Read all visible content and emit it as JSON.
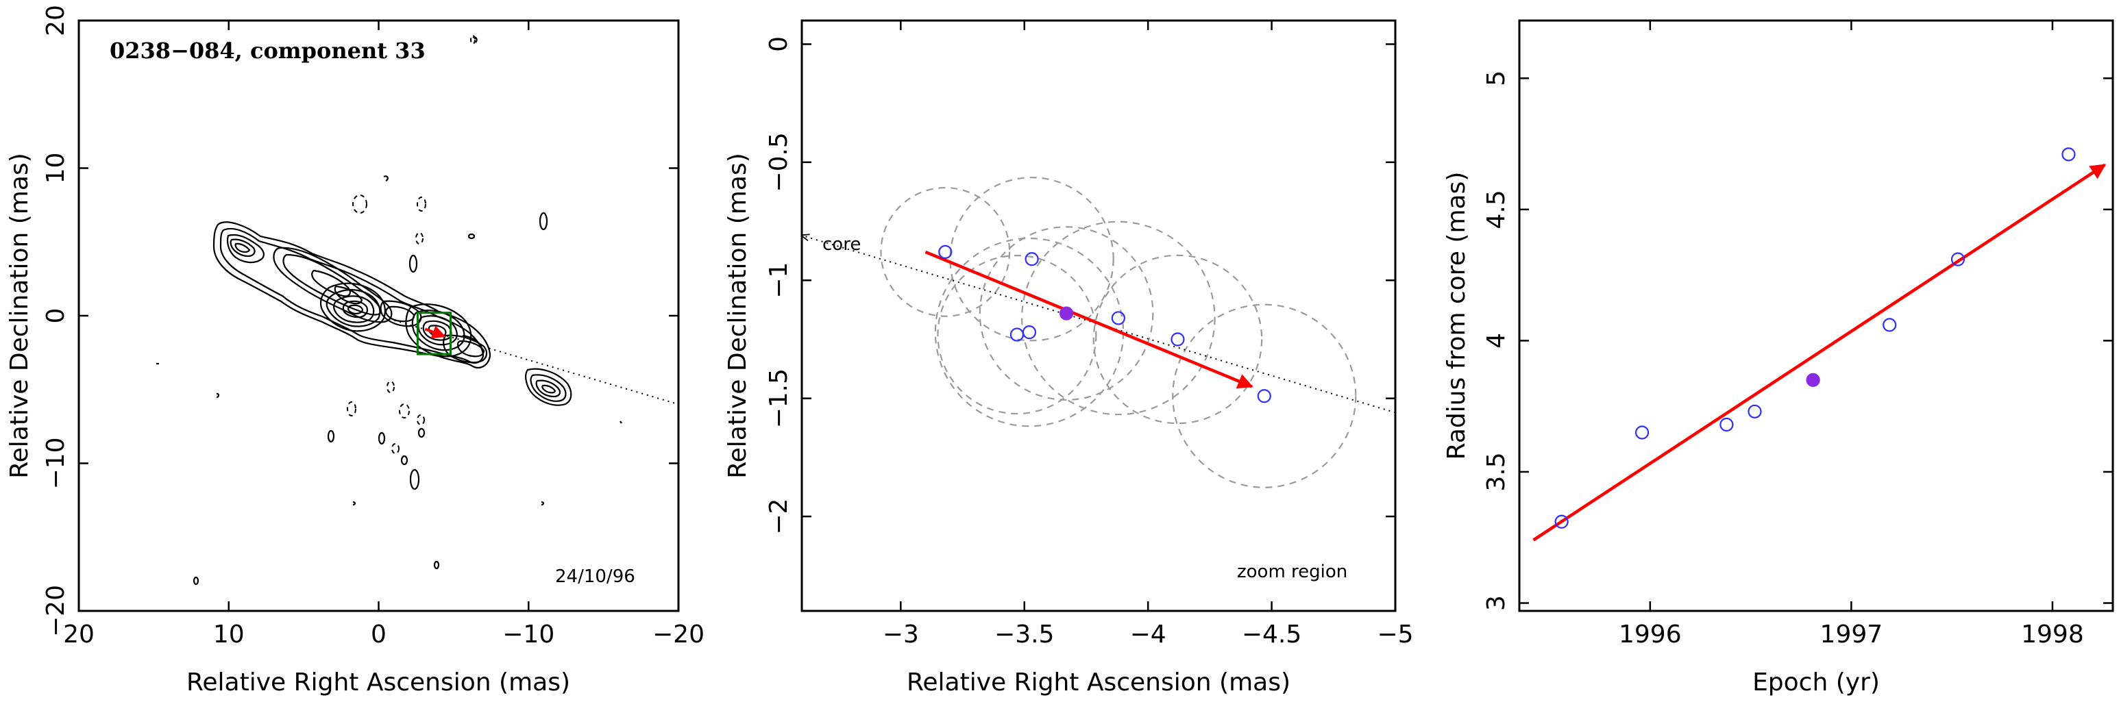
{
  "figure": {
    "colors": {
      "open_marker": "#2f2fff",
      "filled_marker": "#8a2be2",
      "arrow": "#ff0000",
      "box": "#007700"
    }
  },
  "chart_data": [
    {
      "type": "contour",
      "title": "0238−084, component 33",
      "date_label": "24/10/96",
      "xlabel": "Relative Right Ascension (mas)",
      "ylabel": "Relative Declination (mas)",
      "xlim": [
        20,
        -20
      ],
      "ylim": [
        -20,
        20
      ],
      "xticks": [
        20,
        10,
        0,
        -10,
        -20
      ],
      "xtick_labels": [
        "20",
        "10",
        "0",
        "−10",
        "−20"
      ],
      "yticks": [
        -20,
        -10,
        0,
        10,
        20
      ],
      "ytick_labels": [
        "−20",
        "−10",
        "0",
        "10",
        "20"
      ],
      "jet_axis": {
        "from": [
          0,
          0
        ],
        "to": [
          -20,
          -6.0
        ],
        "style": "dotted"
      },
      "marker_box": {
        "x_range": [
          -2.6,
          -4.8
        ],
        "y_range": [
          0.2,
          -2.6
        ]
      },
      "component_arrow": {
        "from": [
          -3.1,
          -0.9
        ],
        "to": [
          -4.4,
          -1.4
        ]
      }
    },
    {
      "type": "scatter",
      "annotation": "zoom region",
      "core_label": "core",
      "xlabel": "Relative Right Ascension (mas)",
      "ylabel": "Relative Declination (mas)",
      "xlim": [
        -2.6,
        -5.0
      ],
      "ylim": [
        -2.4,
        0.1
      ],
      "xticks": [
        -3,
        -3.5,
        -4,
        -4.5,
        -5
      ],
      "xtick_labels": [
        "−3",
        "−3.5",
        "−4",
        "−4.5",
        "−5"
      ],
      "yticks": [
        0,
        -0.5,
        -1,
        -1.5,
        -2
      ],
      "ytick_labels": [
        "0",
        "−0.5",
        "−1",
        "−1.5",
        "−2"
      ],
      "points": [
        {
          "x": -3.18,
          "y": -0.88,
          "filled": false,
          "r": 0.26
        },
        {
          "x": -3.53,
          "y": -0.91,
          "filled": false,
          "r": 0.33
        },
        {
          "x": -3.47,
          "y": -1.23,
          "filled": false,
          "r": 0.32
        },
        {
          "x": -3.52,
          "y": -1.22,
          "filled": false,
          "r": 0.38
        },
        {
          "x": -3.67,
          "y": -1.14,
          "filled": true,
          "r": 0.35
        },
        {
          "x": -3.88,
          "y": -1.16,
          "filled": false,
          "r": 0.39
        },
        {
          "x": -4.12,
          "y": -1.25,
          "filled": false,
          "r": 0.34
        },
        {
          "x": -4.47,
          "y": -1.49,
          "filled": false,
          "r": 0.37
        }
      ],
      "core_direction": {
        "from": [
          -5.0,
          -1.56
        ],
        "to": [
          -2.6,
          -0.81
        ]
      },
      "fit_arrow": {
        "from": [
          -3.1,
          -0.88
        ],
        "to": [
          -4.42,
          -1.45
        ]
      }
    },
    {
      "type": "scatter",
      "xlabel": "Epoch (yr)",
      "ylabel": "Radius from core (mas)",
      "xlim": [
        1995.35,
        1998.3
      ],
      "ylim": [
        2.97,
        5.22
      ],
      "xticks": [
        1996,
        1997,
        1998
      ],
      "xtick_labels": [
        "1996",
        "1997",
        "1998"
      ],
      "yticks": [
        3,
        3.5,
        4,
        4.5,
        5
      ],
      "ytick_labels": [
        "3",
        "3.5",
        "4",
        "4.5",
        "5"
      ],
      "points": [
        {
          "x": 1995.56,
          "y": 3.31,
          "filled": false
        },
        {
          "x": 1995.96,
          "y": 3.65,
          "filled": false
        },
        {
          "x": 1996.38,
          "y": 3.68,
          "filled": false
        },
        {
          "x": 1996.52,
          "y": 3.73,
          "filled": false
        },
        {
          "x": 1996.81,
          "y": 3.85,
          "filled": true
        },
        {
          "x": 1997.19,
          "y": 4.06,
          "filled": false
        },
        {
          "x": 1997.53,
          "y": 4.31,
          "filled": false
        },
        {
          "x": 1998.08,
          "y": 4.71,
          "filled": false
        }
      ],
      "fit_arrow": {
        "from": [
          1995.42,
          3.24
        ],
        "to": [
          1998.26,
          4.67
        ]
      }
    }
  ]
}
